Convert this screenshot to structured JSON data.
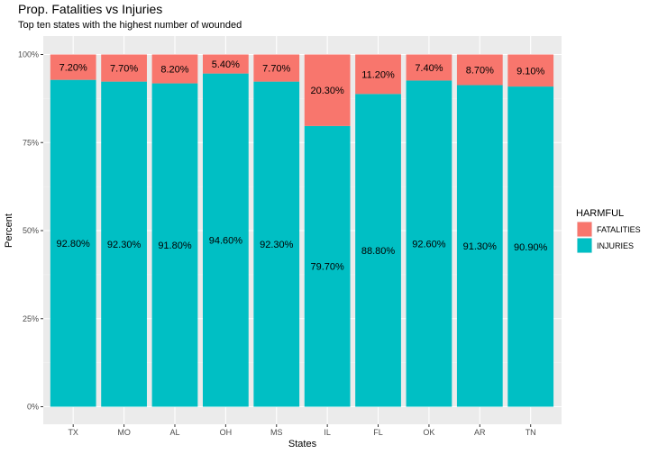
{
  "chart_data": {
    "type": "bar",
    "stacked": true,
    "title": "Prop. Fatalities vs Injuries",
    "subtitle": "Top ten states with the highest number of wounded",
    "xlabel": "States",
    "ylabel": "Percent",
    "ylim": [
      0,
      1
    ],
    "y_ticks": [
      0,
      0.25,
      0.5,
      0.75,
      1.0
    ],
    "y_tick_labels": [
      "0%",
      "25%",
      "50%",
      "75%",
      "100%"
    ],
    "categories": [
      "TX",
      "MO",
      "AL",
      "OH",
      "MS",
      "IL",
      "FL",
      "OK",
      "AR",
      "TN"
    ],
    "series": [
      {
        "name": "INJURIES",
        "color": "#00BFC4",
        "values": [
          0.928,
          0.923,
          0.918,
          0.946,
          0.923,
          0.797,
          0.888,
          0.926,
          0.913,
          0.909
        ],
        "labels": [
          "92.80%",
          "92.30%",
          "91.80%",
          "94.60%",
          "92.30%",
          "79.70%",
          "88.80%",
          "92.60%",
          "91.30%",
          "90.90%"
        ]
      },
      {
        "name": "FATALITIES",
        "color": "#F8766D",
        "values": [
          0.072,
          0.077,
          0.082,
          0.054,
          0.077,
          0.203,
          0.112,
          0.074,
          0.087,
          0.091
        ],
        "labels": [
          "7.20%",
          "7.70%",
          "8.20%",
          "5.40%",
          "7.70%",
          "20.30%",
          "11.20%",
          "7.40%",
          "8.70%",
          "9.10%"
        ]
      }
    ],
    "legend": {
      "title": "HARMFUL",
      "position": "right",
      "entries": [
        "FATALITIES",
        "INJURIES"
      ]
    },
    "grid": true,
    "panel_background": "#EBEBEB"
  }
}
